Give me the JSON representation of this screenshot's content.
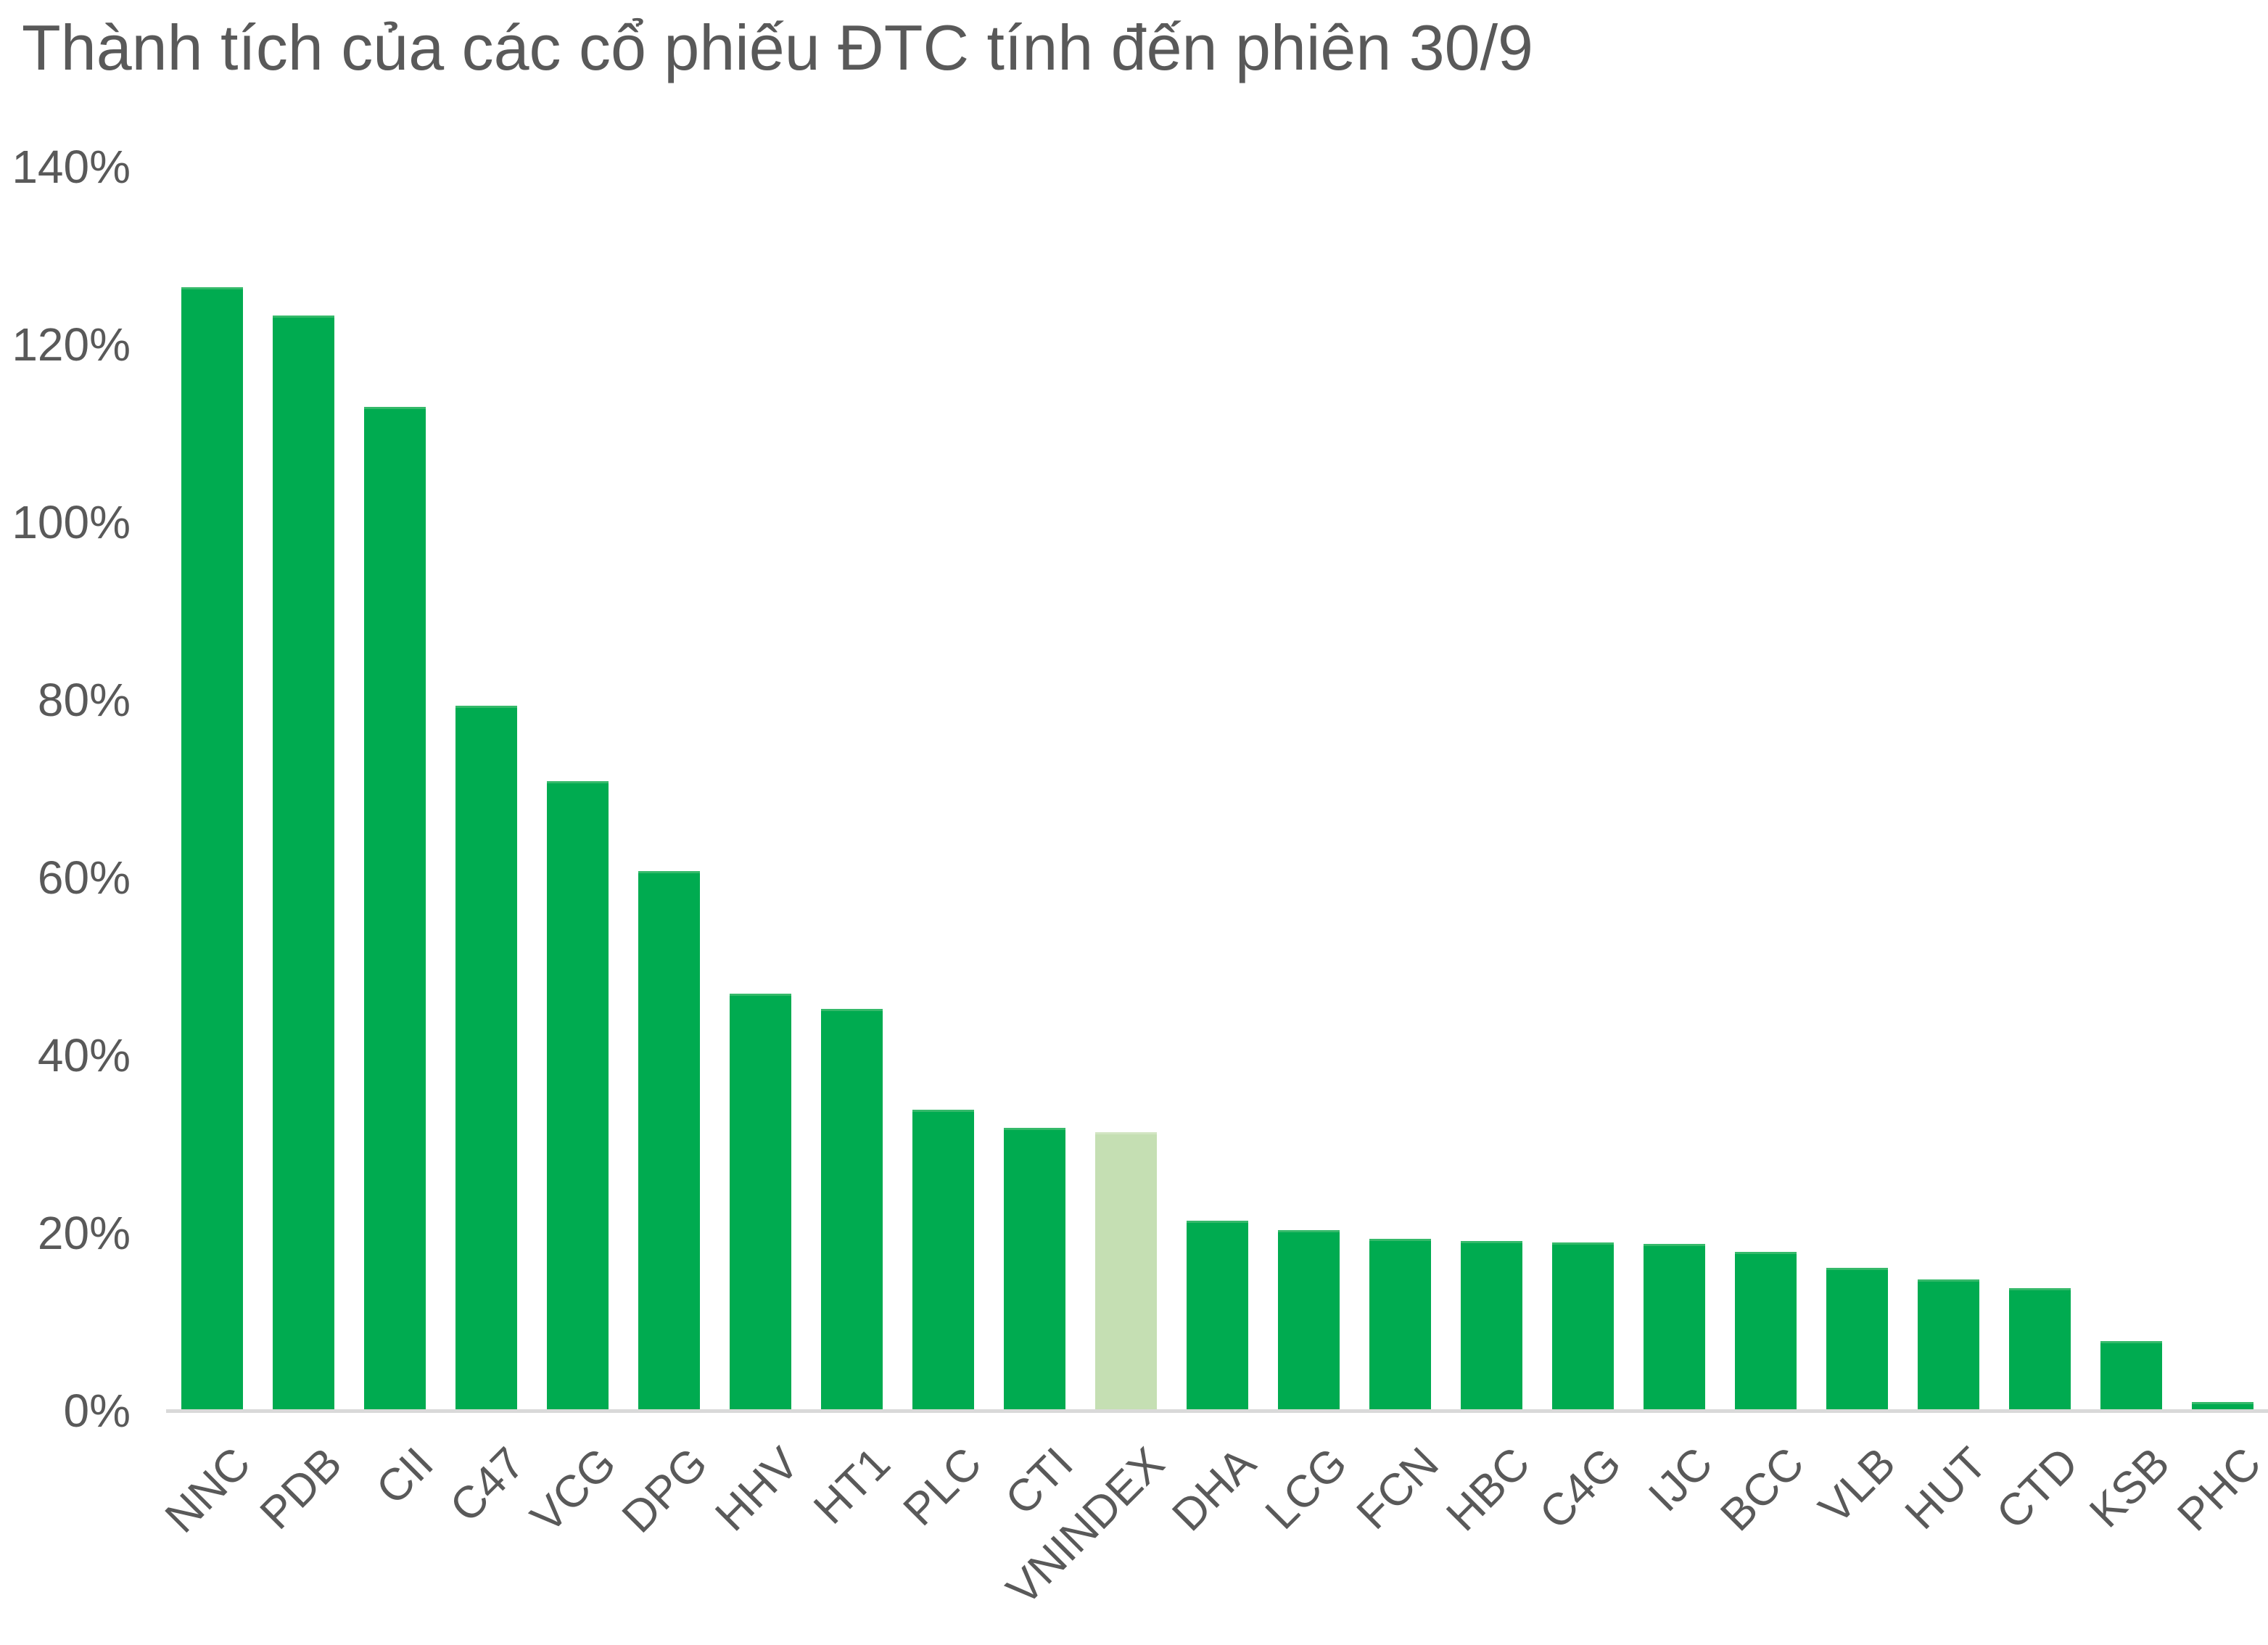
{
  "chart_data": {
    "type": "bar",
    "title": "Thành tích của các cổ phiếu ĐTC tính đến phiên 30/9",
    "categories": [
      "NNC",
      "PDB",
      "CII",
      "C47",
      "VCG",
      "DPG",
      "HHV",
      "HT1",
      "PLC",
      "CTI",
      "VNINDEX",
      "DHA",
      "LCG",
      "FCN",
      "HBC",
      "C4G",
      "IJC",
      "BCC",
      "VLB",
      "HUT",
      "CTD",
      "KSB",
      "PHC"
    ],
    "values": [
      126.3,
      123.1,
      112.8,
      79.2,
      70.7,
      60.6,
      46.8,
      45.1,
      33.7,
      31.7,
      31.2,
      21.2,
      20.2,
      19.2,
      18.9,
      18.8,
      18.6,
      17.7,
      15.9,
      14.6,
      13.6,
      7.7,
      0.8
    ],
    "value_unit": "%",
    "highlight_category": "VNINDEX",
    "xlabel": "",
    "ylabel": "",
    "ylim": [
      0,
      140
    ],
    "ytick_step": 20,
    "ytick_labels": [
      "0%",
      "20%",
      "40%",
      "60%",
      "80%",
      "100%",
      "120%",
      "140%"
    ],
    "grid": false,
    "legend": false,
    "colors": {
      "bar": "#00ab50",
      "bar_highlight": "#c5dfb3",
      "text": "#595959",
      "axis_line": "#d9d9d9",
      "background": "#ffffff"
    }
  }
}
